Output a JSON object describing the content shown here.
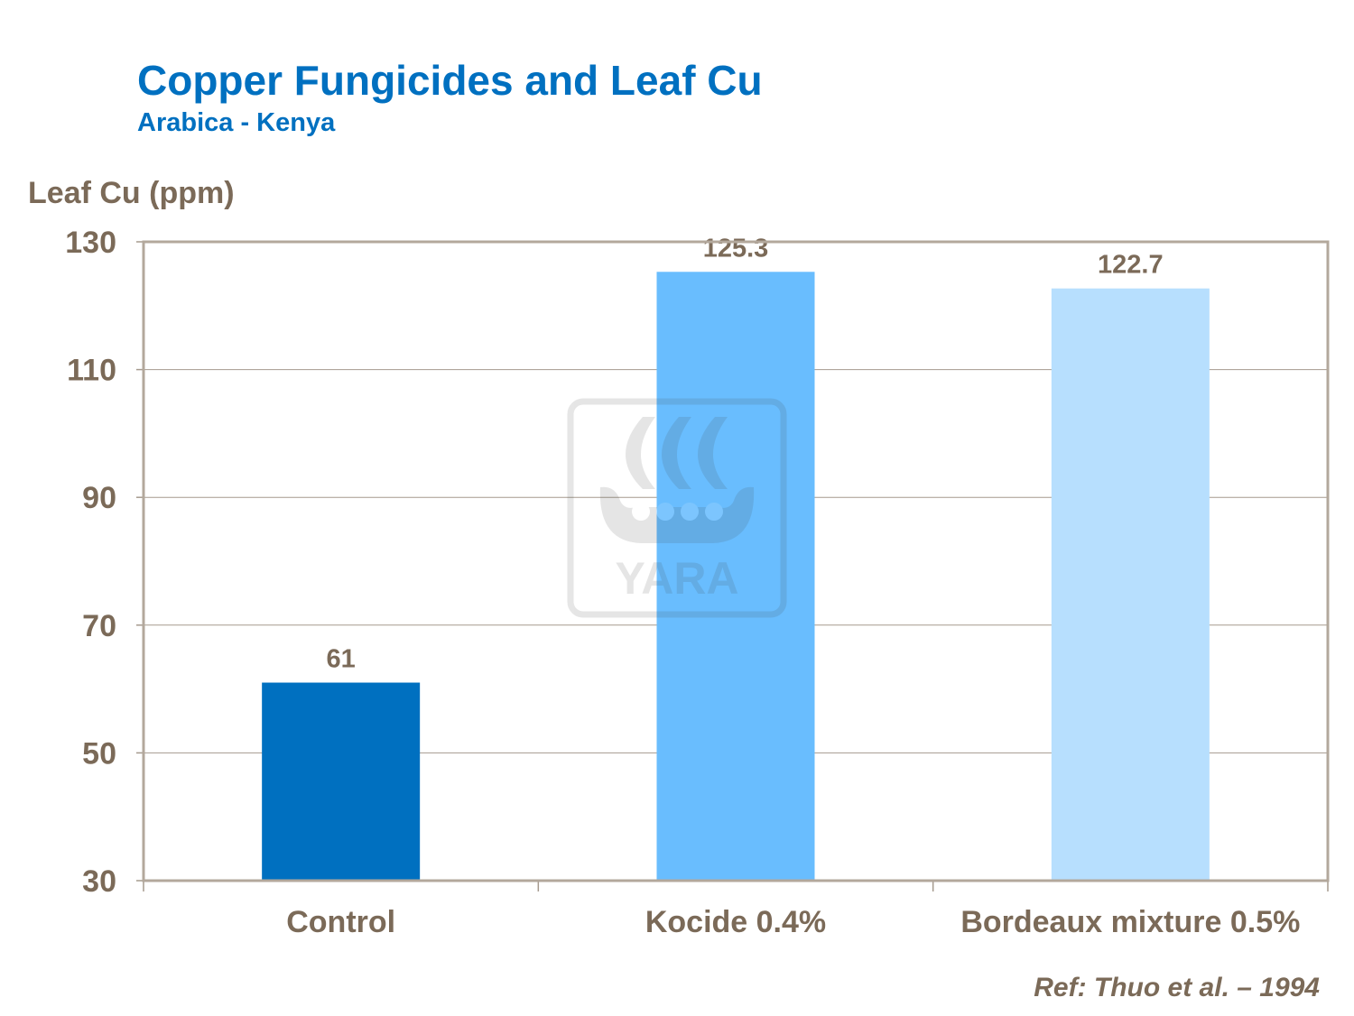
{
  "chart_data": {
    "type": "bar",
    "title": "Copper Fungicides and Leaf Cu",
    "subtitle": "Arabica  - Kenya",
    "ylabel": "Leaf Cu (ppm)",
    "xlabel": "",
    "categories": [
      "Control",
      "Kocide 0.4%",
      "Bordeaux mixture 0.5%"
    ],
    "values": [
      61,
      125.3,
      122.7
    ],
    "data_labels": [
      "61",
      "125.3",
      "122.7"
    ],
    "colors": [
      "#0070C0",
      "#69BDFE",
      "#B7DFFE"
    ],
    "ylim": [
      30,
      130
    ],
    "yticks": [
      30,
      50,
      70,
      90,
      110,
      130
    ],
    "grid": true,
    "legend": "none",
    "watermark": "YARA",
    "reference": "Ref: Thuo et al. – 1994"
  }
}
